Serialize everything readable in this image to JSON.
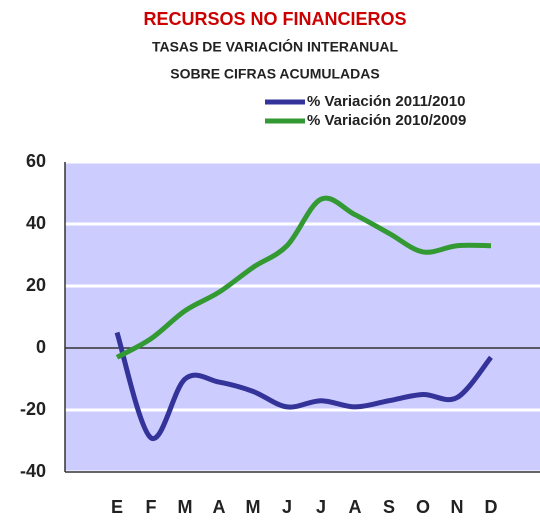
{
  "chart_data": {
    "type": "line",
    "title": "RECURSOS NO FINANCIEROS",
    "subtitle": [
      "TASAS DE VARIACIÓN INTERANUAL",
      "SOBRE CIFRAS ACUMULADAS"
    ],
    "categories": [
      "E",
      "F",
      "M",
      "A",
      "M",
      "J",
      "J",
      "A",
      "S",
      "O",
      "N",
      "D"
    ],
    "series": [
      {
        "name": "% Variación 2011/2010",
        "color": "#333399",
        "values": [
          5,
          -29,
          -10,
          -11,
          -14,
          -19,
          -17,
          -19,
          -17,
          -15,
          -16,
          -3
        ]
      },
      {
        "name": "% Variación 2010/2009",
        "color": "#339933",
        "values": [
          -3,
          3,
          12,
          18,
          26,
          33,
          48,
          43,
          37,
          31,
          33,
          33
        ]
      }
    ],
    "ylim": [
      -40,
      60
    ],
    "yticks": [
      -40,
      -20,
      0,
      20,
      40,
      60
    ],
    "grid": true
  }
}
